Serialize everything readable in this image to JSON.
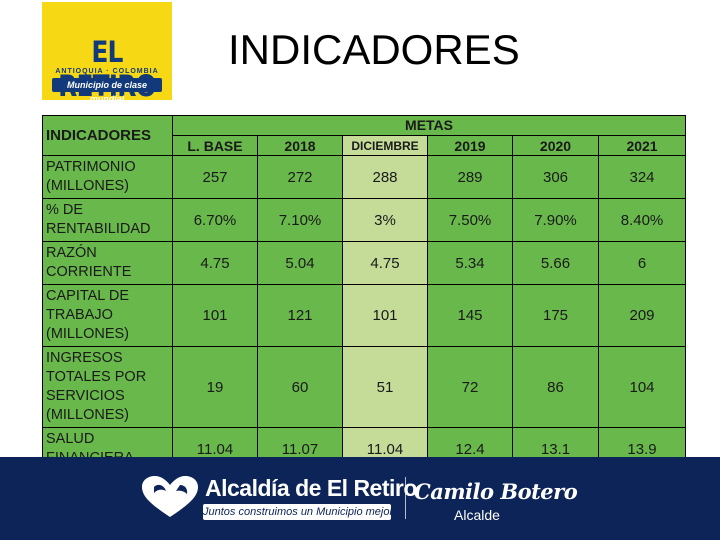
{
  "page": {
    "title": "INDICADORES"
  },
  "logo": {
    "brand": "EL RETIRO",
    "location": "ANTIOQUIA · COLOMBIA",
    "tagline": "Municipio de clase mundial"
  },
  "table": {
    "header_label": "INDICADORES",
    "metas_label": "METAS",
    "columns": [
      "L. BASE",
      "2018",
      "DICIEMBRE",
      "2019",
      "2020",
      "2021"
    ],
    "rows": [
      {
        "label": "PATRIMONIO (MILLONES)",
        "values": [
          "257",
          "272",
          "288",
          "289",
          "306",
          "324"
        ]
      },
      {
        "label": "% DE RENTABILIDAD",
        "values": [
          "6.70%",
          "7.10%",
          "3%",
          "7.50%",
          "7.90%",
          "8.40%"
        ]
      },
      {
        "label": "RAZÓN CORRIENTE",
        "values": [
          "4.75",
          "5.04",
          "4.75",
          "5.34",
          "5.66",
          "6"
        ]
      },
      {
        "label": "CAPITAL DE TRABAJO (MILLONES)",
        "values": [
          "101",
          "121",
          "101",
          "145",
          "175",
          "209"
        ]
      },
      {
        "label": "INGRESOS TOTALES POR SERVICIOS (MILLONES)",
        "values": [
          "19",
          "60",
          "51",
          "72",
          "86",
          "104"
        ]
      },
      {
        "label": "SALUD FINANCIERA",
        "values": [
          "11.04",
          "11.07",
          "11.04",
          "12.4",
          "13.1",
          "13.9"
        ]
      }
    ]
  },
  "footer": {
    "title": "Alcaldía de El Retiro",
    "subtitle": "Juntos construimos un Municipio mejor",
    "mayor_name": "Camilo Botero",
    "mayor_role": "Alcalde"
  },
  "colors": {
    "table_green": "#69b84b",
    "highlight_column": "#c4dc98",
    "footer_navy": "#0c2458",
    "logo_yellow": "#f6d914"
  }
}
